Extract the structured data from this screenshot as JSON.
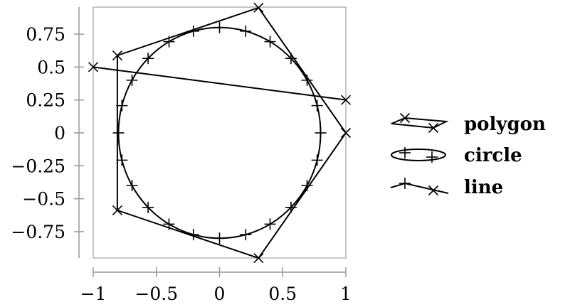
{
  "chart_data": {
    "type": "line",
    "title": "",
    "xlabel": "",
    "ylabel": "",
    "xlim": [
      -1,
      1
    ],
    "ylim": [
      -1,
      0.95
    ],
    "grid": false,
    "legend_position": "right",
    "x_ticks": [
      "−1",
      "−0.5",
      "0",
      "0.5",
      "1"
    ],
    "x_tick_values": [
      -1,
      -0.5,
      0,
      0.5,
      1
    ],
    "y_ticks": [
      "−0.75",
      "−0.5",
      "−0.25",
      "0",
      "0.25",
      "0.5",
      "0.75"
    ],
    "y_tick_values": [
      -0.75,
      -0.5,
      -0.25,
      0,
      0.25,
      0.5,
      0.75
    ],
    "series": [
      {
        "name": "polygon",
        "marker": "x",
        "closed": true,
        "points": [
          [
            1,
            0
          ],
          [
            0.309,
            0.951
          ],
          [
            -0.809,
            0.588
          ],
          [
            -0.809,
            -0.588
          ],
          [
            0.309,
            -0.951
          ]
        ]
      },
      {
        "name": "circle",
        "marker": "+",
        "shape": "circle",
        "center": [
          0,
          0
        ],
        "radius": 0.8,
        "marker_count": 24
      },
      {
        "name": "line",
        "marker": "x",
        "closed": false,
        "points": [
          [
            -1,
            0.5
          ],
          [
            1,
            0.25
          ]
        ]
      }
    ]
  }
}
